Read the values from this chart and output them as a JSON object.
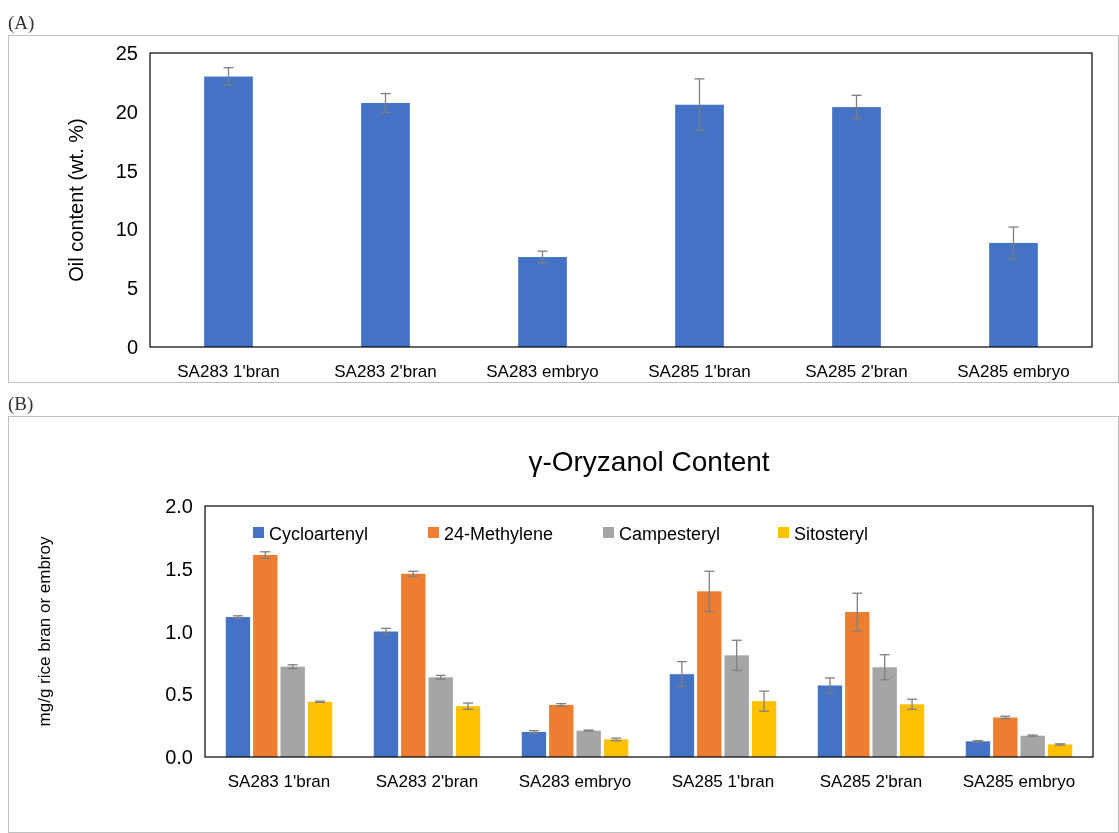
{
  "chart_data": [
    {
      "type": "bar",
      "ylabel": "Oil content (wt. %)",
      "annotations": [
        "(A)"
      ],
      "categories": [
        "SA283 1'bran",
        "SA283 2'bran",
        "SA283 embryo",
        "SA285 1'bran",
        "SA285 2'bran",
        "SA285 embryo"
      ],
      "values": [
        23.0,
        20.75,
        7.65,
        20.6,
        20.4,
        8.85
      ],
      "color": "#4472c4",
      "errors": [
        0.75,
        0.8,
        0.5,
        2.2,
        1.0,
        1.35
      ],
      "ylim": [
        0,
        25
      ],
      "yticks": [
        0,
        5,
        10,
        15,
        20,
        25
      ],
      "grid": false,
      "legend": false
    },
    {
      "type": "bar",
      "title": "γ-Oryzanol Content",
      "ylabel": "mg/g rice bran or embroy",
      "annotations": [
        "(B)"
      ],
      "categories": [
        "SA283 1'bran",
        "SA283 2'bran",
        "SA283 embryo",
        "SA285 1'bran",
        "SA285 2'bran",
        "SA285 embryo"
      ],
      "series": [
        {
          "name": "Cycloartenyl",
          "color": "#4472c4",
          "values": [
            1.115,
            1.0,
            0.2,
            0.66,
            0.57,
            0.125
          ],
          "errors": [
            0.01,
            0.025,
            0.01,
            0.1,
            0.06,
            0.005
          ]
        },
        {
          "name": "24-Methylene",
          "color": "#ed7d31",
          "values": [
            1.61,
            1.46,
            0.415,
            1.32,
            1.155,
            0.315
          ],
          "errors": [
            0.025,
            0.02,
            0.01,
            0.16,
            0.15,
            0.01
          ]
        },
        {
          "name": "Campesteryl",
          "color": "#a5a5a5",
          "values": [
            0.72,
            0.635,
            0.21,
            0.81,
            0.715,
            0.17
          ],
          "errors": [
            0.015,
            0.015,
            0.005,
            0.12,
            0.1,
            0.005
          ]
        },
        {
          "name": "Sitosteryl",
          "color": "#ffc000",
          "values": [
            0.44,
            0.405,
            0.14,
            0.445,
            0.42,
            0.1
          ],
          "errors": [
            0.005,
            0.025,
            0.01,
            0.08,
            0.04,
            0.005
          ]
        }
      ],
      "ylim": [
        0,
        2
      ],
      "yticks": [
        {
          "value": 0,
          "label": "0.0"
        },
        {
          "value": 0.5,
          "label": "0.5"
        },
        {
          "value": 1,
          "label": "1.0"
        },
        {
          "value": 1.5,
          "label": "1.5"
        },
        {
          "value": 2,
          "label": "2.0"
        }
      ],
      "grid": false,
      "legend": "top"
    }
  ]
}
